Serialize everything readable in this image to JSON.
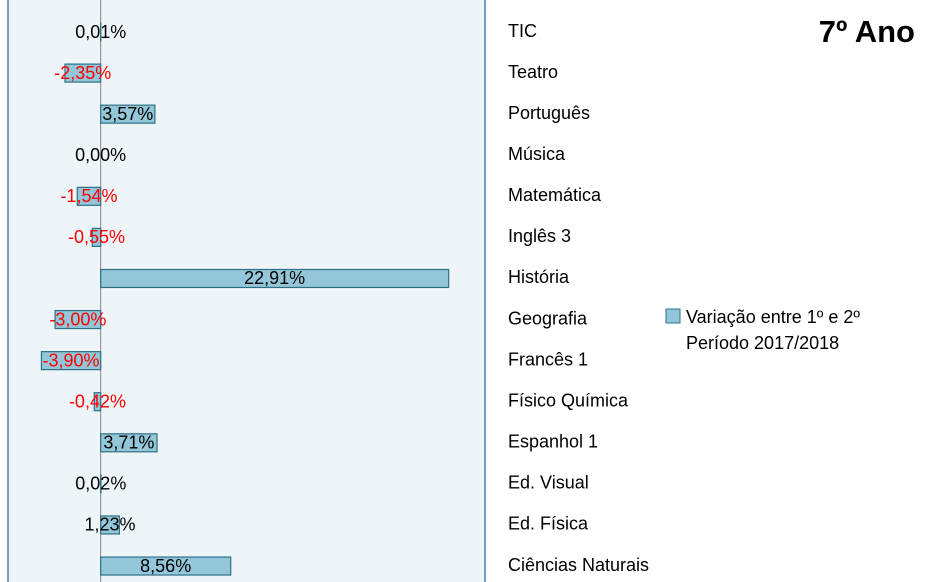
{
  "chart_data": {
    "type": "barh",
    "title": "7º Ano",
    "categories": [
      "TIC",
      "Teatro",
      "Português",
      "Música",
      "Matemática",
      "Inglês 3",
      "História",
      "Geografia",
      "Francês 1",
      "Físico Química",
      "Espanhol 1",
      "Ed. Visual",
      "Ed. Física",
      "Ciências Naturais"
    ],
    "series": [
      {
        "name": "Variação entre 1º e 2º Período 2017/2018",
        "color": "#93c6d8",
        "values": [
          0.01,
          -2.35,
          3.57,
          0.0,
          -1.54,
          -0.55,
          22.91,
          -3.0,
          -3.9,
          -0.42,
          3.71,
          0.02,
          1.23,
          8.56
        ],
        "value_labels": [
          "0,01%",
          "-2,35%",
          "3,57%",
          "0,00%",
          "-1,54%",
          "-0,55%",
          "22,91%",
          "-3,00%",
          "-3,90%",
          "-0,42%",
          "3,71%",
          "0,02%",
          "1,23%",
          "8,56%"
        ]
      }
    ],
    "xlim": [
      -6.1,
      25.3
    ],
    "label_color": "#000000",
    "negative_label_color": "#ff0000"
  }
}
